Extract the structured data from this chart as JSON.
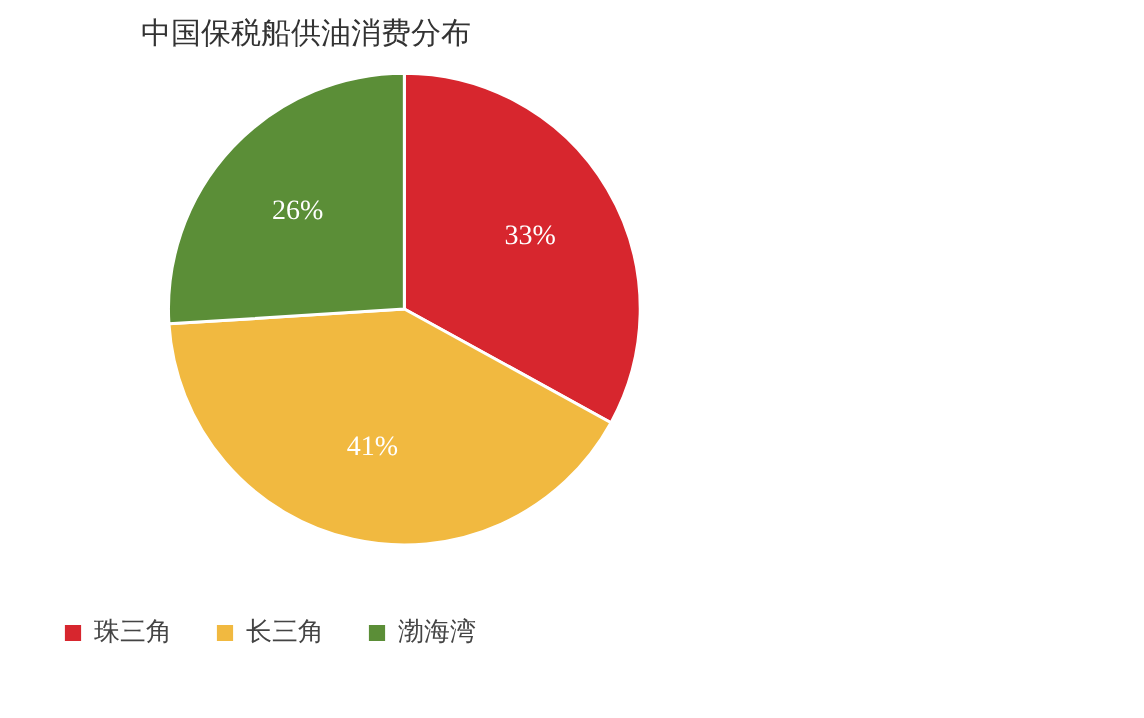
{
  "chart_data": {
    "type": "pie",
    "title": "中国保税船供油消费分布",
    "categories": [
      "珠三角",
      "长三角",
      "渤海湾"
    ],
    "values": [
      33,
      41,
      26
    ],
    "colors": [
      "#d7262e",
      "#f1b940",
      "#5b8e37"
    ],
    "value_labels": [
      "33%",
      "41%",
      "26%"
    ],
    "legend": "bottom left"
  }
}
